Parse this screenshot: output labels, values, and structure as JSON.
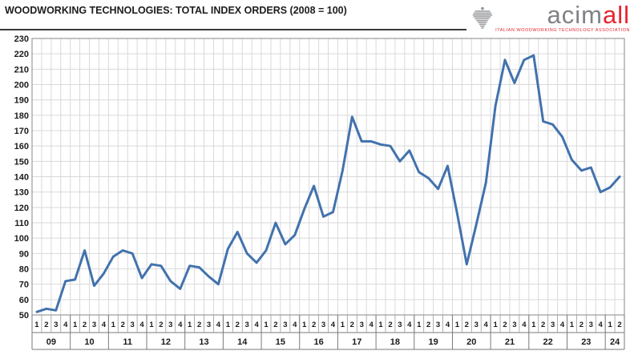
{
  "header": {
    "title": "WOODWORKING TECHNOLOGIES: TOTAL INDEX ORDERS (2008 = 100)",
    "logo": {
      "brand_gray": "acim",
      "brand_red": "all",
      "tagline": "ITALIAN WOODWORKING TECHNOLOGY ASSOCIATION",
      "gray_color": "#808285",
      "red_color": "#e8232e",
      "eagle_icon": "eagle-emblem"
    }
  },
  "chart_data": {
    "type": "line",
    "title": "WOODWORKING TECHNOLOGIES: TOTAL INDEX ORDERS (2008 = 100)",
    "base_note": "2008 = 100",
    "ylim": [
      50,
      230
    ],
    "ytick_step": 10,
    "grid": true,
    "legend": "none",
    "line_color": "#4272ad",
    "grid_color": "#d9d9d9",
    "frame_color": "#9b9b9b",
    "axis_table_color": "#7a7a7a",
    "label_color": "#1a1a1a",
    "years": [
      "09",
      "10",
      "11",
      "12",
      "13",
      "14",
      "15",
      "16",
      "17",
      "18",
      "19",
      "20",
      "21",
      "22",
      "23",
      "24"
    ],
    "quarters_per_year": [
      4,
      4,
      4,
      4,
      4,
      4,
      4,
      4,
      4,
      4,
      4,
      4,
      4,
      4,
      4,
      2
    ],
    "quarter_labels": [
      "1",
      "2",
      "3",
      "4"
    ],
    "series": [
      {
        "name": "Total index orders",
        "values": [
          52,
          54,
          53,
          72,
          73,
          92,
          69,
          77,
          88,
          92,
          90,
          74,
          83,
          82,
          72,
          67,
          82,
          81,
          75,
          70,
          93,
          104,
          90,
          84,
          92,
          110,
          96,
          102,
          119,
          134,
          114,
          117,
          144,
          179,
          163,
          163,
          161,
          160,
          150,
          157,
          143,
          139,
          132,
          147,
          116,
          83,
          109,
          136,
          186,
          216,
          201,
          216,
          219,
          176,
          174,
          166,
          151,
          144,
          146,
          130,
          133,
          140
        ]
      }
    ]
  }
}
